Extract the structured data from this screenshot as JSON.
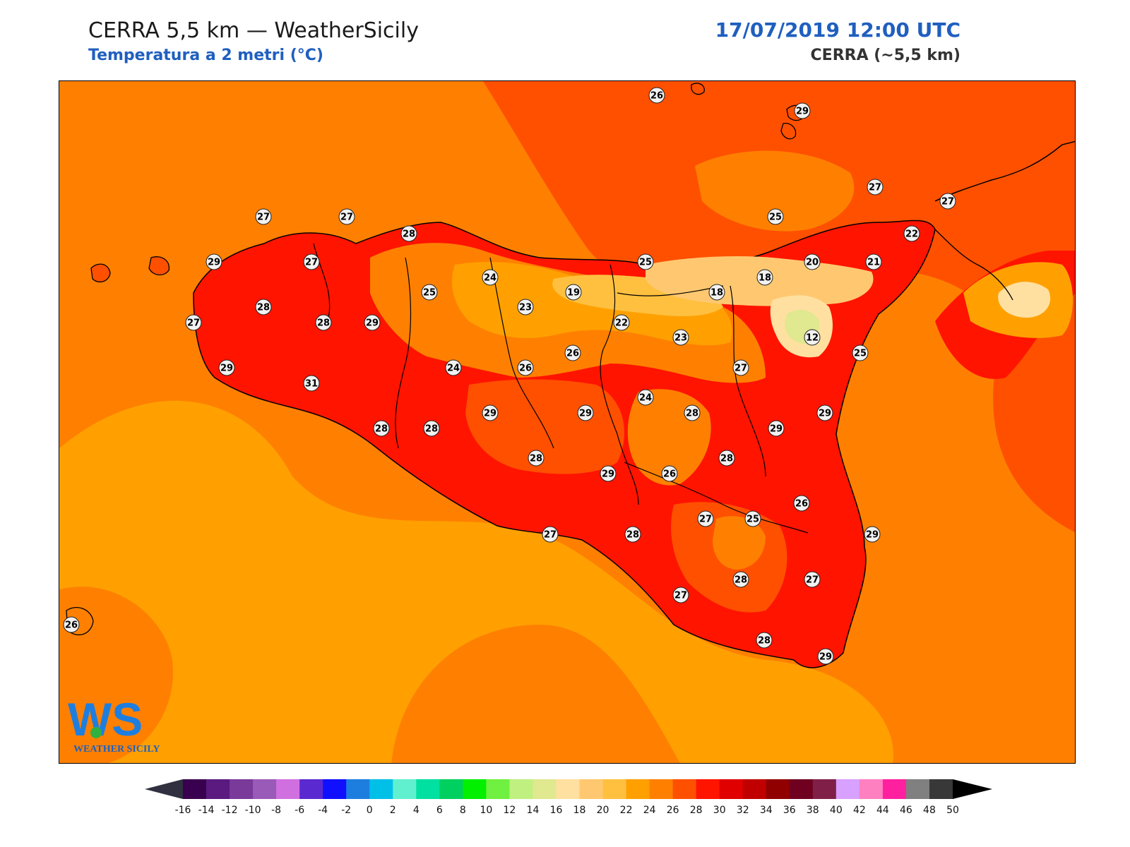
{
  "header": {
    "title": "CERRA 5,5 km — WeatherSicily",
    "subtitle": "Temperatura a 2 metri (°C)",
    "datetime": "17/07/2019 12:00 UTC",
    "model": "CERRA (~5,5 km)"
  },
  "logo": {
    "letters": "WS",
    "name": "WEATHER SICILY"
  },
  "colorbar": {
    "ticks": [
      "-16",
      "-14",
      "-12",
      "-10",
      "-8",
      "-6",
      "-4",
      "-2",
      "0",
      "2",
      "4",
      "6",
      "8",
      "10",
      "12",
      "14",
      "16",
      "18",
      "20",
      "22",
      "24",
      "26",
      "28",
      "30",
      "32",
      "34",
      "36",
      "38",
      "40",
      "42",
      "44",
      "46",
      "48",
      "50"
    ],
    "colors": [
      "#3a0050",
      "#5a1a80",
      "#7a3a9a",
      "#9a5ab8",
      "#d070e0",
      "#5a2ad0",
      "#1010ff",
      "#1e7ee0",
      "#00c0e8",
      "#60f0d0",
      "#00e0a0",
      "#00d060",
      "#00f000",
      "#70f040",
      "#c0f080",
      "#e0e890",
      "#ffe0a0",
      "#ffc870",
      "#ffc040",
      "#ffa000",
      "#ff8000",
      "#ff5000",
      "#ff1400",
      "#e00000",
      "#c00000",
      "#900000",
      "#700020",
      "#802048",
      "#d8a0ff",
      "#ff80c0",
      "#ff20a0",
      "#808080",
      "#383838"
    ],
    "under_color": "#303040",
    "over_color": "#000000"
  },
  "map": {
    "region": "Sicily",
    "stations": [
      {
        "v": "26"
      },
      {
        "v": "29"
      },
      {
        "v": "27"
      },
      {
        "v": "27"
      },
      {
        "v": "27"
      },
      {
        "v": "28"
      },
      {
        "v": "27"
      },
      {
        "v": "25"
      },
      {
        "v": "22"
      },
      {
        "v": "29"
      },
      {
        "v": "27"
      },
      {
        "v": "25"
      },
      {
        "v": "24"
      },
      {
        "v": "25"
      },
      {
        "v": "18"
      },
      {
        "v": "20"
      },
      {
        "v": "21"
      },
      {
        "v": "28"
      },
      {
        "v": "19"
      },
      {
        "v": "18"
      },
      {
        "v": "23"
      },
      {
        "v": "27"
      },
      {
        "v": "28"
      },
      {
        "v": "29"
      },
      {
        "v": "22"
      },
      {
        "v": "12"
      },
      {
        "v": "23"
      },
      {
        "v": "25"
      },
      {
        "v": "26"
      },
      {
        "v": "29"
      },
      {
        "v": "24"
      },
      {
        "v": "26"
      },
      {
        "v": "27"
      },
      {
        "v": "31"
      },
      {
        "v": "24"
      },
      {
        "v": "28"
      },
      {
        "v": "29"
      },
      {
        "v": "29"
      },
      {
        "v": "28"
      },
      {
        "v": "28"
      },
      {
        "v": "29"
      },
      {
        "v": "29"
      },
      {
        "v": "28"
      },
      {
        "v": "28"
      },
      {
        "v": "29"
      },
      {
        "v": "26"
      },
      {
        "v": "26"
      },
      {
        "v": "27"
      },
      {
        "v": "25"
      },
      {
        "v": "29"
      },
      {
        "v": "27"
      },
      {
        "v": "28"
      },
      {
        "v": "27"
      },
      {
        "v": "28"
      },
      {
        "v": "27"
      },
      {
        "v": "28"
      },
      {
        "v": "29"
      },
      {
        "v": "26"
      }
    ]
  }
}
